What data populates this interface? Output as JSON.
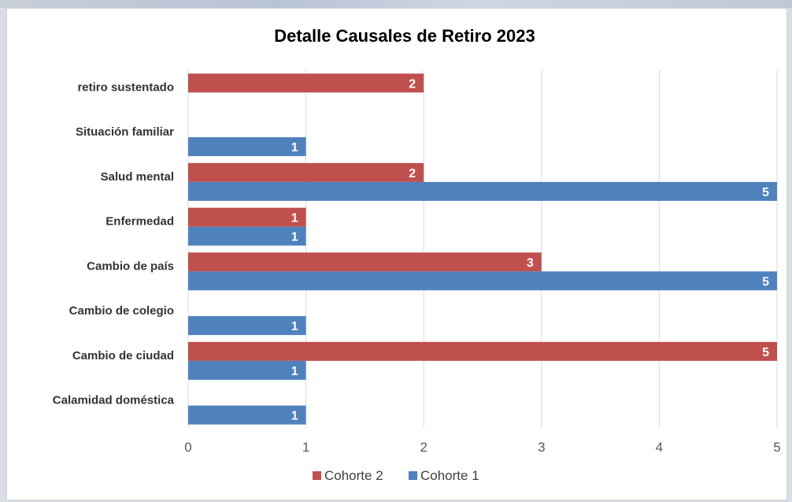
{
  "chart_data": {
    "type": "bar",
    "orientation": "horizontal",
    "title": "Detalle Causales de Retiro 2023",
    "xlabel": "",
    "ylabel": "",
    "xlim": [
      0,
      5
    ],
    "ticks": [
      "0",
      "1",
      "2",
      "3",
      "4",
      "5"
    ],
    "grid": true,
    "legend_position": "bottom",
    "categories": [
      "Calamidad doméstica",
      "Cambio de ciudad",
      "Cambio de colegio",
      "Cambio de país",
      "Enfermedad",
      "Salud mental",
      "Situación familiar",
      "retiro sustentado"
    ],
    "series": [
      {
        "name": "Cohorte 1",
        "color": "#4f81bd",
        "values": [
          1,
          1,
          1,
          5,
          1,
          5,
          1,
          null
        ]
      },
      {
        "name": "Cohorte 2",
        "color": "#c0504d",
        "values": [
          null,
          5,
          null,
          3,
          1,
          2,
          null,
          2
        ]
      }
    ],
    "legend_order": [
      "Cohorte 2",
      "Cohorte 1"
    ]
  }
}
